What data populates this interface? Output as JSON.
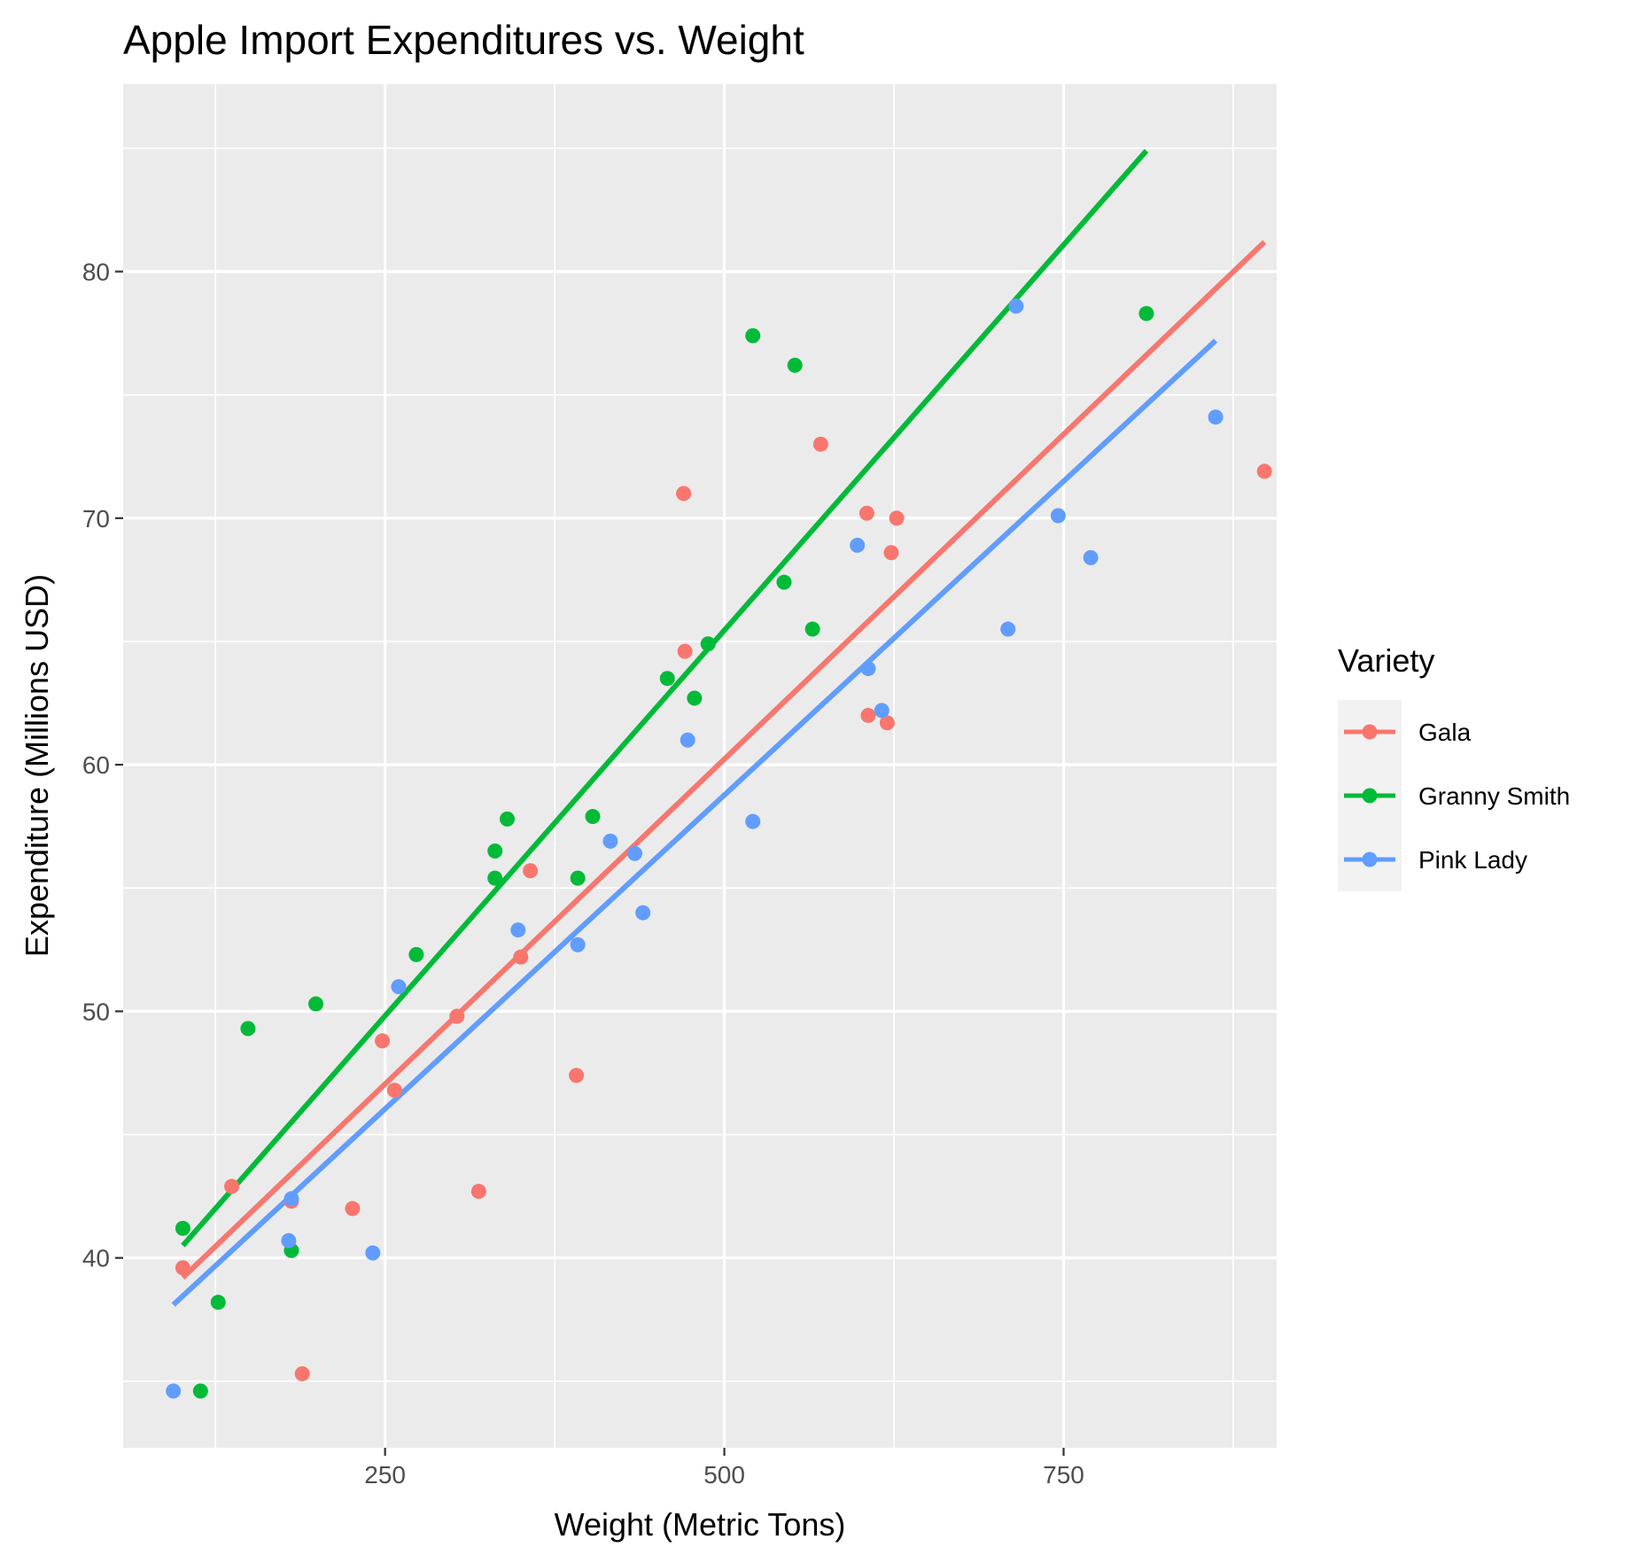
{
  "chart_data": {
    "type": "scatter",
    "title": "Apple Import Expenditures vs. Weight",
    "xlabel": "Weight (Metric Tons)",
    "ylabel": "Expenditure (Millions USD)",
    "xlim": [
      57,
      907
    ],
    "ylim": [
      32.3,
      87.6
    ],
    "x_major_ticks": [
      250,
      500,
      750
    ],
    "x_minor_ticks": [
      125,
      375,
      625,
      875
    ],
    "y_major_ticks": [
      40,
      50,
      60,
      70,
      80
    ],
    "y_minor_ticks": [
      35,
      45,
      55,
      65,
      75,
      85
    ],
    "grid": true,
    "legend": {
      "title": "Variety",
      "position": "right"
    },
    "series": [
      {
        "name": "Gala",
        "color": "#F8766D",
        "points": [
          [
            101,
            39.6
          ],
          [
            137,
            42.9
          ],
          [
            181,
            42.3
          ],
          [
            189,
            35.3
          ],
          [
            226,
            42.0
          ],
          [
            248,
            48.8
          ],
          [
            257,
            46.8
          ],
          [
            303,
            49.8
          ],
          [
            319,
            42.7
          ],
          [
            350,
            52.2
          ],
          [
            357,
            55.7
          ],
          [
            391,
            47.4
          ],
          [
            470,
            71.0
          ],
          [
            471,
            64.6
          ],
          [
            571,
            73.0
          ],
          [
            605,
            70.2
          ],
          [
            606,
            62.0
          ],
          [
            620,
            61.7
          ],
          [
            623,
            68.6
          ],
          [
            627,
            70.0
          ],
          [
            898,
            71.9
          ]
        ],
        "fit": [
          [
            101,
            39.2
          ],
          [
            898,
            81.2
          ]
        ]
      },
      {
        "name": "Granny Smith",
        "color": "#00BA38",
        "points": [
          [
            101,
            41.2
          ],
          [
            114,
            34.6
          ],
          [
            127,
            38.2
          ],
          [
            149,
            49.3
          ],
          [
            181,
            40.3
          ],
          [
            199,
            50.3
          ],
          [
            273,
            52.3
          ],
          [
            331,
            55.4
          ],
          [
            331,
            56.5
          ],
          [
            340,
            57.8
          ],
          [
            392,
            55.4
          ],
          [
            403,
            57.9
          ],
          [
            458,
            63.5
          ],
          [
            478,
            62.7
          ],
          [
            488,
            64.9
          ],
          [
            521,
            77.4
          ],
          [
            544,
            67.4
          ],
          [
            552,
            76.2
          ],
          [
            565,
            65.5
          ],
          [
            811,
            78.3
          ]
        ],
        "fit": [
          [
            101,
            40.5
          ],
          [
            811,
            84.9
          ]
        ]
      },
      {
        "name": "Pink Lady",
        "color": "#619CFF",
        "points": [
          [
            94,
            34.6
          ],
          [
            179,
            40.7
          ],
          [
            181,
            42.4
          ],
          [
            241,
            40.2
          ],
          [
            260,
            51.0
          ],
          [
            348,
            53.3
          ],
          [
            392,
            52.7
          ],
          [
            416,
            56.9
          ],
          [
            434,
            56.4
          ],
          [
            440,
            54.0
          ],
          [
            473,
            61.0
          ],
          [
            521,
            57.7
          ],
          [
            598,
            68.9
          ],
          [
            606,
            63.9
          ],
          [
            616,
            62.2
          ],
          [
            709,
            65.5
          ],
          [
            715,
            78.6
          ],
          [
            746,
            70.1
          ],
          [
            770,
            68.4
          ],
          [
            862,
            74.1
          ]
        ],
        "fit": [
          [
            94,
            38.1
          ],
          [
            862,
            77.2
          ]
        ]
      }
    ]
  }
}
